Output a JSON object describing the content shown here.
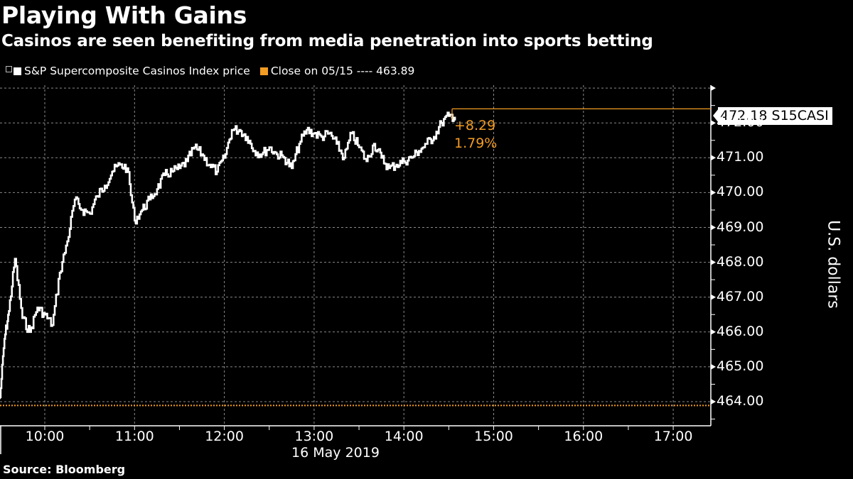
{
  "header": {
    "title": "Playing With Gains",
    "subtitle": "Casinos are seen benefiting from media penetration into sports betting"
  },
  "legend": {
    "items": [
      {
        "label": "S&P Supercomposite Casinos Index price",
        "color": "#ffffff"
      },
      {
        "label": "Close on 05/15 ---- 463.89",
        "color": "#f39c23"
      }
    ]
  },
  "last_value": {
    "badge": "472.18 S15CASI",
    "change": "+8.29",
    "change_pct": "1.79%"
  },
  "footer": {
    "source": "Source: Bloomberg"
  },
  "colors": {
    "background": "#000000",
    "price_line": "#ffffff",
    "close_line": "#f39c23",
    "grid": "#888888"
  },
  "chart_data": {
    "type": "line",
    "title": "Playing With Gains",
    "subtitle": "Casinos are seen benefiting from media penetration into sports betting",
    "xlabel": "16 May 2019",
    "ylabel": "U.S. dollars",
    "x_ticks": [
      "10:00",
      "11:00",
      "12:00",
      "13:00",
      "14:00",
      "15:00",
      "16:00",
      "17:00"
    ],
    "y_ticks": [
      "464.00",
      "465.00",
      "466.00",
      "467.00",
      "468.00",
      "469.00",
      "470.00",
      "471.00",
      "472.00"
    ],
    "ylim": [
      463.3,
      473.5
    ],
    "grid": true,
    "legend_position": "top-left",
    "reference_line": {
      "name": "Close on 05/15",
      "value": 463.89,
      "style": "dotted",
      "color": "#f39c23"
    },
    "series": [
      {
        "name": "S&P Supercomposite Casinos Index price",
        "ticker": "S15CASI",
        "last": 472.18,
        "change": 8.29,
        "change_pct": 1.79,
        "x": [
          "09:30",
          "09:33",
          "09:36",
          "09:40",
          "09:45",
          "09:50",
          "09:55",
          "10:00",
          "10:05",
          "10:10",
          "10:15",
          "10:20",
          "10:25",
          "10:30",
          "10:35",
          "10:40",
          "10:45",
          "10:50",
          "10:55",
          "11:00",
          "11:05",
          "11:10",
          "11:15",
          "11:20",
          "11:25",
          "11:30",
          "11:35",
          "11:40",
          "11:45",
          "11:50",
          "11:55",
          "12:00",
          "12:05",
          "12:10",
          "12:15",
          "12:20",
          "12:25",
          "12:30",
          "12:35",
          "12:40",
          "12:45",
          "12:50",
          "12:55",
          "13:00",
          "13:05",
          "13:10",
          "13:15",
          "13:20",
          "13:25",
          "13:30",
          "13:35",
          "13:40",
          "13:45",
          "13:50",
          "13:55",
          "14:00",
          "14:05",
          "14:10",
          "14:15",
          "14:20",
          "14:25",
          "14:30",
          "14:35"
        ],
        "values": [
          464.1,
          465.8,
          466.6,
          468.1,
          466.4,
          466.0,
          466.7,
          466.5,
          466.2,
          467.7,
          468.6,
          469.8,
          469.5,
          469.4,
          469.9,
          470.2,
          470.6,
          470.8,
          470.7,
          469.2,
          469.5,
          469.8,
          470.1,
          470.5,
          470.6,
          470.7,
          470.9,
          471.3,
          471.1,
          470.8,
          470.6,
          471.0,
          471.8,
          471.8,
          471.6,
          471.2,
          471.1,
          471.3,
          471.1,
          471.0,
          470.7,
          471.4,
          471.8,
          471.7,
          471.6,
          471.7,
          471.4,
          471.0,
          471.7,
          471.3,
          470.9,
          471.4,
          471.0,
          470.7,
          470.8,
          470.9,
          471.0,
          471.2,
          471.4,
          471.6,
          472.0,
          472.2,
          472.18
        ]
      }
    ]
  }
}
